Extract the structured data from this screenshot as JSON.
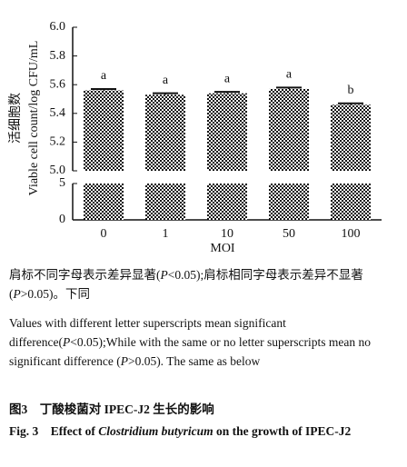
{
  "chart_data": {
    "type": "bar",
    "y_label_zh": "活细胞数",
    "y_label": "Viable cell count/log CFU/mL",
    "x_label": "MOI",
    "categories": [
      "0",
      "1",
      "10",
      "50",
      "100"
    ],
    "values": [
      5.56,
      5.53,
      5.54,
      5.57,
      5.46
    ],
    "errors": [
      0.01,
      0.01,
      0.01,
      0.01,
      0.01
    ],
    "letters": [
      "a",
      "a",
      "a",
      "a",
      "b"
    ],
    "y_segments": [
      {
        "ylim": [
          0,
          5
        ],
        "yticks": [
          0,
          5
        ]
      },
      {
        "ylim": [
          5,
          6
        ],
        "yticks": [
          {
            "value": 5,
            "label": "5.0"
          },
          5.2,
          5.4,
          5.6,
          5.8,
          {
            "value": 6,
            "label": "6.0"
          }
        ]
      }
    ]
  },
  "caption": {
    "note_zh": [
      "肩标不同字母表示差异显著(",
      "P",
      "<0.05);肩标相同字母表示差异不显著(",
      "P",
      ">0.05)。下同"
    ],
    "note_en": [
      "Values with different letter superscripts mean significant difference(",
      "P",
      "<0.05);While with the same or no letter superscripts mean no significant difference (",
      "P",
      ">0.05). The same as below"
    ],
    "figure_zh": "图3　丁酸梭菌对 IPEC-J2 生长的影响",
    "figure_en": [
      "Fig. 3　Effect of ",
      "Clostridium butyricum",
      " on the growth of IPEC-J2"
    ]
  }
}
